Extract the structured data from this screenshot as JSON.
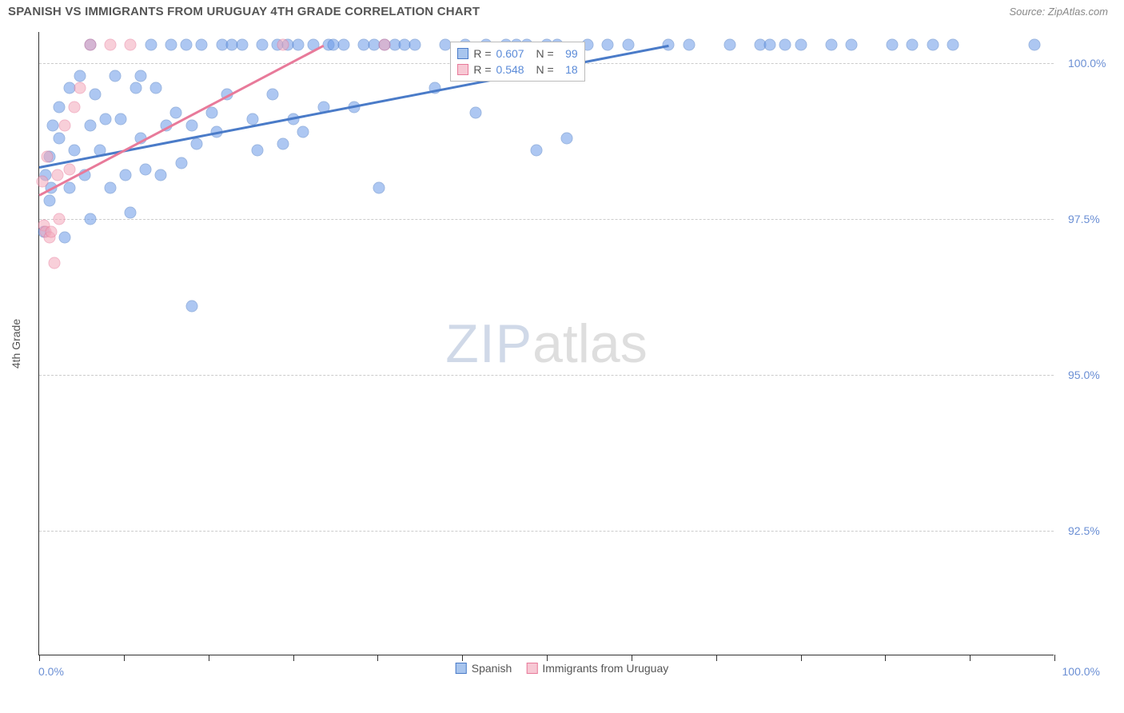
{
  "header": {
    "title": "SPANISH VS IMMIGRANTS FROM URUGUAY 4TH GRADE CORRELATION CHART",
    "source_label": "Source: ZipAtlas.com"
  },
  "chart": {
    "type": "scatter",
    "ylabel": "4th Grade",
    "background_color": "#ffffff",
    "grid_color": "#cccccc",
    "axis_color": "#333333",
    "tick_label_color": "#6b8fd4",
    "tick_fontsize": 14,
    "title_fontsize": 15,
    "title_color": "#555555",
    "xlim": [
      0,
      100
    ],
    "ylim": [
      90.5,
      100.5
    ],
    "yticks": [
      {
        "value": 100.0,
        "label": "100.0%"
      },
      {
        "value": 97.5,
        "label": "97.5%"
      },
      {
        "value": 95.0,
        "label": "95.0%"
      },
      {
        "value": 92.5,
        "label": "92.5%"
      }
    ],
    "xtick_positions": [
      0,
      8.33,
      16.67,
      25,
      33.33,
      41.67,
      50,
      58.33,
      66.67,
      75,
      83.33,
      91.67,
      100
    ],
    "xaxis_left_label": "0.0%",
    "xaxis_right_label": "100.0%",
    "watermark": {
      "zip": "ZIP",
      "atlas": "atlas"
    },
    "series": [
      {
        "name": "Spanish",
        "color": "#6b9be8",
        "border": "#4a7bc8",
        "marker_radius": 7.5,
        "points": [
          [
            0.5,
            97.3
          ],
          [
            0.6,
            98.2
          ],
          [
            1,
            97.8
          ],
          [
            1,
            98.5
          ],
          [
            1.2,
            98.0
          ],
          [
            1.3,
            99.0
          ],
          [
            2,
            98.8
          ],
          [
            2,
            99.3
          ],
          [
            2.5,
            97.2
          ],
          [
            3,
            99.6
          ],
          [
            3,
            98.0
          ],
          [
            3.5,
            98.6
          ],
          [
            4,
            99.8
          ],
          [
            4.5,
            98.2
          ],
          [
            5,
            99.0
          ],
          [
            5,
            97.5
          ],
          [
            5,
            100.3
          ],
          [
            5.5,
            99.5
          ],
          [
            6,
            98.6
          ],
          [
            6.5,
            99.1
          ],
          [
            7,
            98.0
          ],
          [
            7.5,
            99.8
          ],
          [
            8,
            99.1
          ],
          [
            8.5,
            98.2
          ],
          [
            9,
            97.6
          ],
          [
            9.5,
            99.6
          ],
          [
            10,
            98.8
          ],
          [
            10,
            99.8
          ],
          [
            10.5,
            98.3
          ],
          [
            11,
            100.3
          ],
          [
            11.5,
            99.6
          ],
          [
            12,
            98.2
          ],
          [
            12.5,
            99.0
          ],
          [
            13,
            100.3
          ],
          [
            13.5,
            99.2
          ],
          [
            14,
            98.4
          ],
          [
            14.5,
            100.3
          ],
          [
            15,
            99.0
          ],
          [
            15,
            96.1
          ],
          [
            15.5,
            98.7
          ],
          [
            16,
            100.3
          ],
          [
            17,
            99.2
          ],
          [
            17.5,
            98.9
          ],
          [
            18,
            100.3
          ],
          [
            18.5,
            99.5
          ],
          [
            19,
            100.3
          ],
          [
            20,
            100.3
          ],
          [
            21,
            99.1
          ],
          [
            21.5,
            98.6
          ],
          [
            22,
            100.3
          ],
          [
            23,
            99.5
          ],
          [
            23.5,
            100.3
          ],
          [
            24,
            98.7
          ],
          [
            24.5,
            100.3
          ],
          [
            25,
            99.1
          ],
          [
            25.5,
            100.3
          ],
          [
            26,
            98.9
          ],
          [
            27,
            100.3
          ],
          [
            28,
            99.3
          ],
          [
            28.5,
            100.3
          ],
          [
            29,
            100.3
          ],
          [
            30,
            100.3
          ],
          [
            31,
            99.3
          ],
          [
            32,
            100.3
          ],
          [
            33,
            100.3
          ],
          [
            33.5,
            98.0
          ],
          [
            34,
            100.3
          ],
          [
            35,
            100.3
          ],
          [
            36,
            100.3
          ],
          [
            37,
            100.3
          ],
          [
            39,
            99.6
          ],
          [
            40,
            100.3
          ],
          [
            42,
            100.3
          ],
          [
            43,
            99.2
          ],
          [
            44,
            100.3
          ],
          [
            46,
            100.3
          ],
          [
            47,
            100.3
          ],
          [
            48,
            100.3
          ],
          [
            49,
            98.6
          ],
          [
            50,
            100.3
          ],
          [
            51,
            100.3
          ],
          [
            52,
            98.8
          ],
          [
            54,
            100.3
          ],
          [
            56,
            100.3
          ],
          [
            58,
            100.3
          ],
          [
            62,
            100.3
          ],
          [
            64,
            100.3
          ],
          [
            68,
            100.3
          ],
          [
            71,
            100.3
          ],
          [
            72,
            100.3
          ],
          [
            73.5,
            100.3
          ],
          [
            75,
            100.3
          ],
          [
            78,
            100.3
          ],
          [
            80,
            100.3
          ],
          [
            84,
            100.3
          ],
          [
            86,
            100.3
          ],
          [
            88,
            100.3
          ],
          [
            90,
            100.3
          ],
          [
            98,
            100.3
          ]
        ],
        "trend": {
          "x1": 0,
          "y1": 98.35,
          "x2": 62,
          "y2": 100.3
        }
      },
      {
        "name": "Immigrants from Uruguay",
        "color": "#f4a8bb",
        "border": "#e87a9a",
        "marker_radius": 7.5,
        "points": [
          [
            0.3,
            98.1
          ],
          [
            0.5,
            97.4
          ],
          [
            0.6,
            97.3
          ],
          [
            0.8,
            98.5
          ],
          [
            1.0,
            97.2
          ],
          [
            1.2,
            97.3
          ],
          [
            1.5,
            96.8
          ],
          [
            1.8,
            98.2
          ],
          [
            2.0,
            97.5
          ],
          [
            2.5,
            99.0
          ],
          [
            3.0,
            98.3
          ],
          [
            3.5,
            99.3
          ],
          [
            4.0,
            99.6
          ],
          [
            5.0,
            100.3
          ],
          [
            7.0,
            100.3
          ],
          [
            9.0,
            100.3
          ],
          [
            24,
            100.3
          ],
          [
            34,
            100.3
          ]
        ],
        "trend": {
          "x1": 0,
          "y1": 97.9,
          "x2": 28,
          "y2": 100.3
        }
      }
    ],
    "correlation_box": {
      "left_pct": 40.5,
      "rows": [
        {
          "swatch": "blue",
          "r": "0.607",
          "n": "99"
        },
        {
          "swatch": "pink",
          "r": "0.548",
          "n": "18"
        }
      ]
    },
    "bottom_legend": [
      {
        "swatch": "blue",
        "label": "Spanish"
      },
      {
        "swatch": "pink",
        "label": "Immigrants from Uruguay"
      }
    ]
  }
}
